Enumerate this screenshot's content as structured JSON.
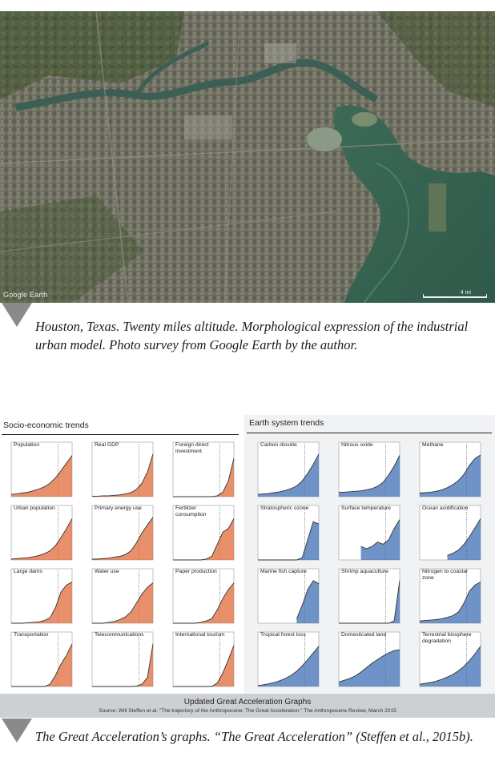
{
  "figure1": {
    "image_label": "Google Earth",
    "scale_label": "4 mi",
    "caption": "Houston, Texas. Twenty miles altitude. Morphological expression of the industrial urban model. Photo survey from Google Earth by the author."
  },
  "figure2": {
    "left_panel_title": "Socio-economic trends",
    "right_panel_title": "Earth system trends",
    "footer_title": "Updated Great Acceleration Graphs",
    "footer_source": "Source: Will Steffen et al. \"The trajectory of the Anthropocene: The Great Acceleration.\" The Anthropocene Review, March 2015",
    "caption": "The Great Acceleration’s graphs. “The Great Acceleration” (Steffen et al., 2015b).",
    "colors": {
      "socio": "#e06a3a",
      "earth": "#3f6fb3"
    }
  },
  "chart_data": [
    {
      "type": "area",
      "panel": "Socio-economic trends",
      "x_range": [
        1750,
        2010
      ],
      "charts": [
        {
          "title": "Population",
          "values": [
            0.05,
            0.06,
            0.08,
            0.1,
            0.13,
            0.17,
            0.22,
            0.3,
            0.42,
            0.58,
            0.75,
            0.92
          ]
        },
        {
          "title": "Real GDP",
          "values": [
            0.01,
            0.01,
            0.02,
            0.02,
            0.03,
            0.04,
            0.06,
            0.09,
            0.16,
            0.3,
            0.55,
            0.95
          ]
        },
        {
          "title": "Foreign direct investment",
          "values": [
            0,
            0,
            0,
            0,
            0,
            0,
            0,
            0,
            0.02,
            0.1,
            0.35,
            0.85
          ]
        },
        {
          "title": "Urban population",
          "values": [
            0.02,
            0.03,
            0.04,
            0.05,
            0.07,
            0.1,
            0.14,
            0.2,
            0.32,
            0.5,
            0.7,
            0.92
          ]
        },
        {
          "title": "Primary energy use",
          "values": [
            0.02,
            0.02,
            0.03,
            0.04,
            0.06,
            0.08,
            0.12,
            0.2,
            0.38,
            0.6,
            0.78,
            0.95
          ]
        },
        {
          "title": "Fertilizer consumption",
          "values": [
            0,
            0,
            0,
            0,
            0,
            0,
            0.02,
            0.08,
            0.35,
            0.62,
            0.7,
            0.92
          ]
        },
        {
          "title": "Large dams",
          "values": [
            0,
            0,
            0,
            0.01,
            0.02,
            0.03,
            0.06,
            0.12,
            0.35,
            0.7,
            0.85,
            0.92
          ]
        },
        {
          "title": "Water use",
          "values": [
            0,
            0,
            0,
            0.02,
            0.04,
            0.08,
            0.14,
            0.25,
            0.45,
            0.65,
            0.8,
            0.9
          ]
        },
        {
          "title": "Paper production",
          "values": [
            0,
            0,
            0,
            0,
            0,
            0.02,
            0.05,
            0.1,
            0.3,
            0.55,
            0.75,
            0.9
          ]
        },
        {
          "title": "Transportation",
          "values": [
            0,
            0,
            0,
            0,
            0,
            0,
            0,
            0.05,
            0.25,
            0.5,
            0.7,
            0.95
          ]
        },
        {
          "title": "Telecommunications",
          "values": [
            0,
            0,
            0,
            0,
            0,
            0,
            0,
            0,
            0.01,
            0.05,
            0.2,
            0.95
          ]
        },
        {
          "title": "International tourism",
          "values": [
            0,
            0,
            0,
            0,
            0,
            0,
            0,
            0,
            0.08,
            0.3,
            0.6,
            0.92
          ]
        }
      ]
    },
    {
      "type": "area",
      "panel": "Earth system trends",
      "x_range": [
        1750,
        2010
      ],
      "charts": [
        {
          "title": "Carbon dioxide",
          "values": [
            0.05,
            0.06,
            0.07,
            0.09,
            0.11,
            0.14,
            0.18,
            0.24,
            0.35,
            0.52,
            0.72,
            0.95
          ]
        },
        {
          "title": "Nitrous oxide",
          "values": [
            0.1,
            0.1,
            0.11,
            0.12,
            0.13,
            0.15,
            0.18,
            0.23,
            0.32,
            0.48,
            0.68,
            0.92
          ]
        },
        {
          "title": "Methane",
          "values": [
            0.08,
            0.09,
            0.1,
            0.12,
            0.15,
            0.2,
            0.27,
            0.36,
            0.5,
            0.7,
            0.85,
            0.93
          ]
        },
        {
          "title": "Stratospheric ozone",
          "values": [
            0,
            0,
            0,
            0,
            0,
            0,
            0,
            0,
            0.05,
            0.45,
            0.85,
            0.8
          ]
        },
        {
          "title": "Surface temperature",
          "values": [
            null,
            null,
            null,
            null,
            0.3,
            0.25,
            0.3,
            0.4,
            0.35,
            0.45,
            0.7,
            0.9
          ]
        },
        {
          "title": "Ocean acidification",
          "values": [
            null,
            null,
            null,
            null,
            null,
            0.1,
            0.15,
            0.22,
            0.35,
            0.52,
            0.72,
            0.92
          ]
        },
        {
          "title": "Marine fish capture",
          "values": [
            null,
            null,
            null,
            null,
            null,
            null,
            null,
            0.1,
            0.4,
            0.75,
            0.95,
            0.88
          ]
        },
        {
          "title": "Shrimp aquaculture",
          "values": [
            0,
            0,
            0,
            0,
            0,
            0,
            0,
            0,
            0,
            0,
            0.05,
            0.95
          ]
        },
        {
          "title": "Nitrogen to coastal zone",
          "values": [
            0.05,
            0.06,
            0.07,
            0.08,
            0.1,
            0.13,
            0.17,
            0.25,
            0.45,
            0.72,
            0.85,
            0.92
          ]
        },
        {
          "title": "Tropical forest loss",
          "values": [
            0.02,
            0.04,
            0.06,
            0.09,
            0.13,
            0.18,
            0.25,
            0.34,
            0.46,
            0.6,
            0.75,
            0.9
          ]
        },
        {
          "title": "Domesticated land",
          "values": [
            0.1,
            0.14,
            0.18,
            0.24,
            0.32,
            0.42,
            0.52,
            0.6,
            0.68,
            0.75,
            0.8,
            0.82
          ]
        },
        {
          "title": "Terrestrial biosphere degradation",
          "values": [
            0.05,
            0.07,
            0.09,
            0.12,
            0.16,
            0.21,
            0.27,
            0.35,
            0.45,
            0.58,
            0.73,
            0.9
          ]
        }
      ]
    }
  ]
}
